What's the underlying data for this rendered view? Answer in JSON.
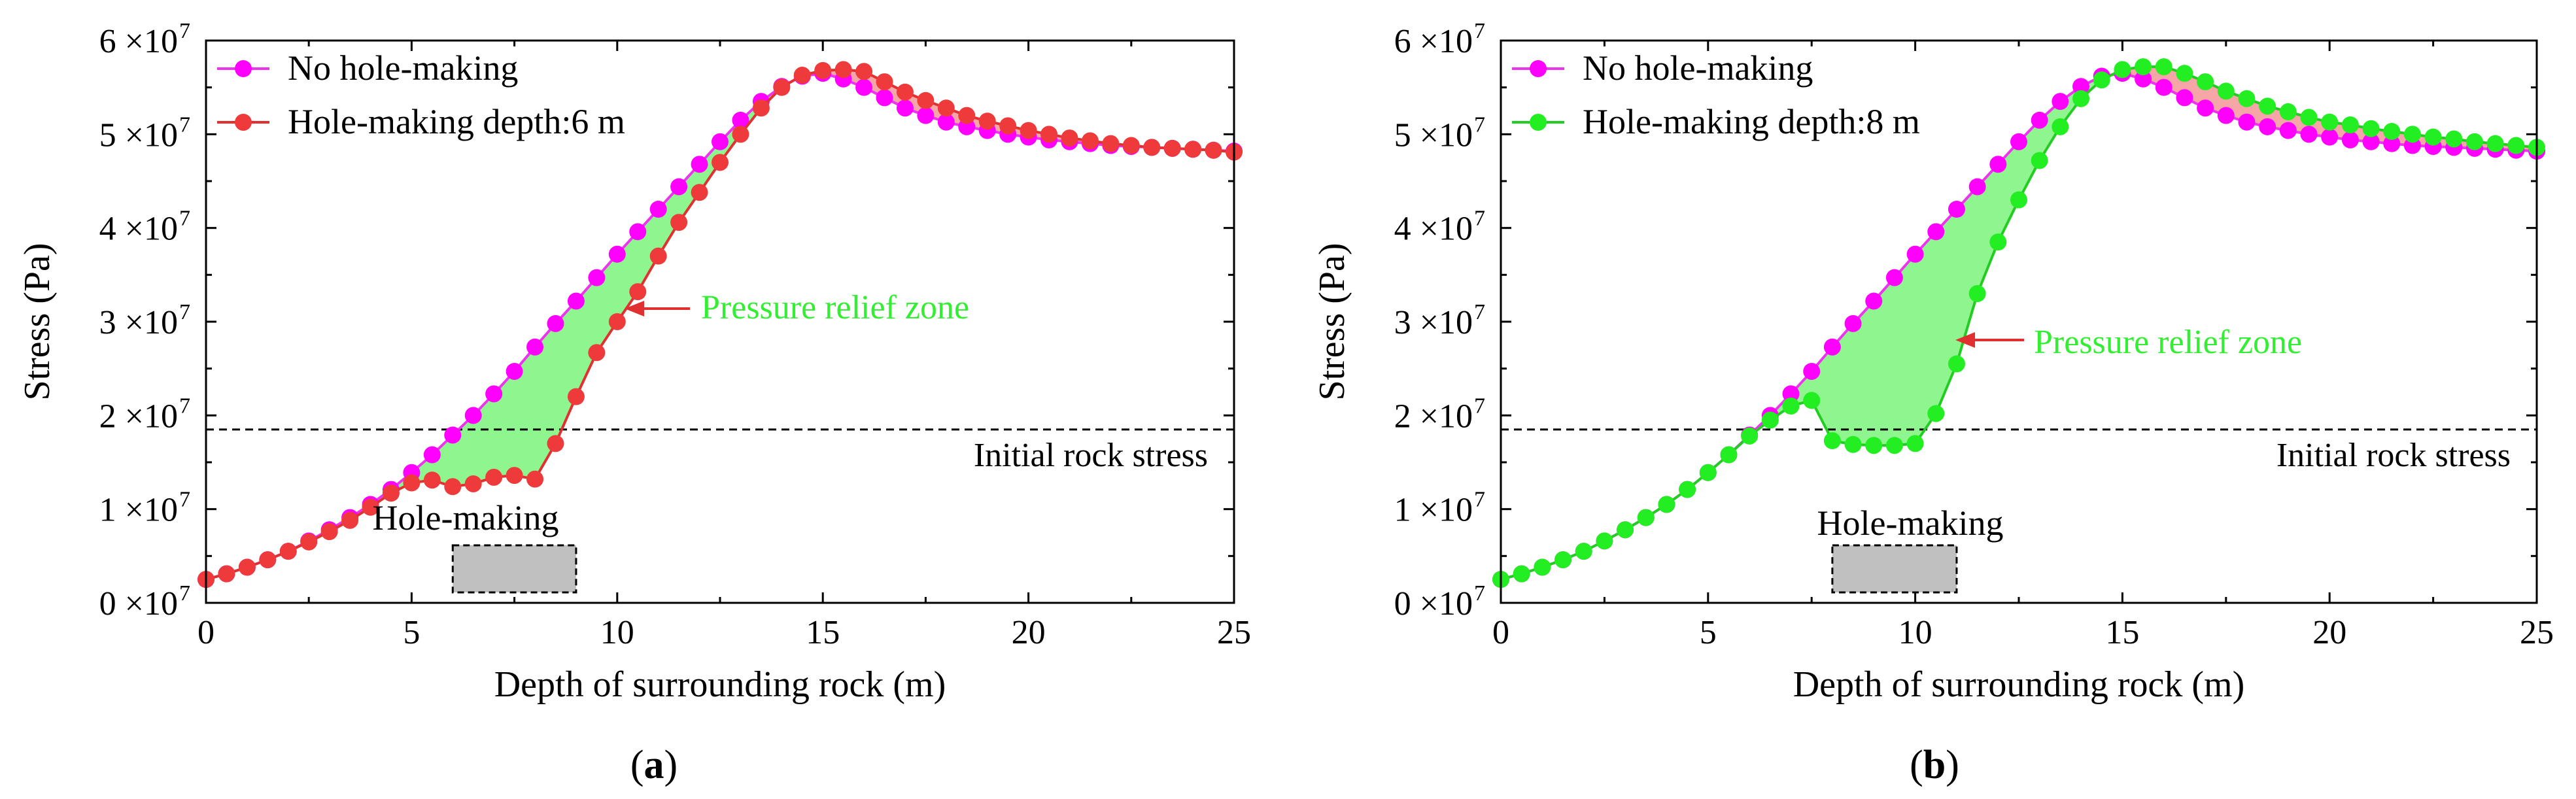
{
  "chart_data": [
    {
      "panel": "(a)",
      "panel_letter": "a",
      "type": "line",
      "xlabel": "Depth of surrounding rock (m)",
      "ylabel": "Stress (Pa)",
      "xlim": [
        0,
        25
      ],
      "ylim": [
        0,
        60000000
      ],
      "xticks": [
        0,
        5,
        10,
        15,
        20,
        25
      ],
      "yticks": [
        0,
        10000000,
        20000000,
        30000000,
        40000000,
        50000000,
        60000000
      ],
      "ytick_labels": [
        "0 ×10",
        "1 ×10",
        "2 ×10",
        "3 ×10",
        "4 ×10",
        "5 ×10",
        "6 ×10"
      ],
      "ytick_exponent": "7",
      "legend": "top-left",
      "series": [
        {
          "name": "No hole-making",
          "color": "#ff00ff",
          "line_color": "#ee33ee",
          "x": [
            0,
            0.5,
            1,
            1.5,
            2,
            2.5,
            3,
            3.5,
            4,
            4.5,
            5,
            5.5,
            6,
            6.5,
            7,
            7.5,
            8,
            8.5,
            9,
            9.5,
            10,
            10.5,
            11,
            11.5,
            12,
            12.5,
            13,
            13.5,
            14,
            14.5,
            15,
            15.5,
            16,
            16.5,
            17,
            17.5,
            18,
            18.5,
            19,
            19.5,
            20,
            20.5,
            21,
            21.5,
            22,
            22.5,
            23,
            23.5,
            24,
            24.5,
            25
          ],
          "values": [
            2500000,
            3100000,
            3800000,
            4600000,
            5500000,
            6600000,
            7800000,
            9100000,
            10500000,
            12100000,
            13900000,
            15800000,
            17900000,
            20000000,
            22300000,
            24700000,
            27300000,
            29800000,
            32200000,
            34700000,
            37200000,
            39600000,
            42000000,
            44400000,
            46800000,
            49200000,
            51500000,
            53500000,
            55100000,
            56200000,
            56500000,
            55900000,
            55000000,
            53900000,
            52800000,
            52000000,
            51300000,
            50800000,
            50400000,
            50000000,
            49700000,
            49400000,
            49200000,
            49000000,
            48800000,
            48700000,
            48600000,
            48500000,
            48400000,
            48300000,
            48200000
          ]
        },
        {
          "name": "Hole-making depth:6 m",
          "color": "#ee3a3a",
          "line_color": "#e03030",
          "x": [
            0,
            0.5,
            1,
            1.5,
            2,
            2.5,
            3,
            3.5,
            4,
            4.5,
            5,
            5.5,
            6,
            6.5,
            7,
            7.5,
            8,
            8.5,
            9,
            9.5,
            10,
            10.5,
            11,
            11.5,
            12,
            12.5,
            13,
            13.5,
            14,
            14.5,
            15,
            15.5,
            16,
            16.5,
            17,
            17.5,
            18,
            18.5,
            19,
            19.5,
            20,
            20.5,
            21,
            21.5,
            22,
            22.5,
            23,
            23.5,
            24,
            24.5,
            25
          ],
          "values": [
            2500000,
            3100000,
            3800000,
            4600000,
            5500000,
            6500000,
            7600000,
            8800000,
            10200000,
            11700000,
            12800000,
            13100000,
            12400000,
            12700000,
            13400000,
            13600000,
            13200000,
            17000000,
            22000000,
            26700000,
            30000000,
            33200000,
            37000000,
            40600000,
            43800000,
            47000000,
            50000000,
            52800000,
            55000000,
            56300000,
            56800000,
            56900000,
            56700000,
            55600000,
            54500000,
            53600000,
            52800000,
            52000000,
            51400000,
            50900000,
            50400000,
            50000000,
            49600000,
            49300000,
            49000000,
            48800000,
            48600000,
            48500000,
            48400000,
            48300000,
            48100000
          ]
        }
      ],
      "annotations": {
        "initial_stress": {
          "label": "Initial rock stress",
          "value": 18500000
        },
        "pressure_relief": {
          "label": "Pressure relief zone",
          "color": "#33ee33"
        },
        "hole_making": {
          "label": "Hole-making",
          "x_start": 6,
          "x_end": 9
        }
      }
    },
    {
      "panel": "(b)",
      "panel_letter": "b",
      "type": "line",
      "xlabel": "Depth of surrounding rock (m)",
      "ylabel": "Stress (Pa)",
      "xlim": [
        0,
        25
      ],
      "ylim": [
        0,
        60000000
      ],
      "xticks": [
        0,
        5,
        10,
        15,
        20,
        25
      ],
      "yticks": [
        0,
        10000000,
        20000000,
        30000000,
        40000000,
        50000000,
        60000000
      ],
      "ytick_labels": [
        "0 ×10",
        "1 ×10",
        "2 ×10",
        "3 ×10",
        "4 ×10",
        "5 ×10",
        "6 ×10"
      ],
      "ytick_exponent": "7",
      "legend": "top-left",
      "series": [
        {
          "name": "No hole-making",
          "color": "#ff00ff",
          "line_color": "#ee33ee",
          "x": [
            0,
            0.5,
            1,
            1.5,
            2,
            2.5,
            3,
            3.5,
            4,
            4.5,
            5,
            5.5,
            6,
            6.5,
            7,
            7.5,
            8,
            8.5,
            9,
            9.5,
            10,
            10.5,
            11,
            11.5,
            12,
            12.5,
            13,
            13.5,
            14,
            14.5,
            15,
            15.5,
            16,
            16.5,
            17,
            17.5,
            18,
            18.5,
            19,
            19.5,
            20,
            20.5,
            21,
            21.5,
            22,
            22.5,
            23,
            23.5,
            24,
            24.5,
            25
          ],
          "values": [
            2500000,
            3100000,
            3800000,
            4600000,
            5500000,
            6600000,
            7800000,
            9100000,
            10500000,
            12100000,
            13900000,
            15800000,
            17900000,
            20000000,
            22300000,
            24700000,
            27300000,
            29800000,
            32200000,
            34700000,
            37200000,
            39600000,
            42000000,
            44400000,
            46800000,
            49200000,
            51500000,
            53500000,
            55100000,
            56200000,
            56500000,
            55900000,
            55000000,
            53900000,
            52800000,
            52000000,
            51300000,
            50800000,
            50400000,
            50000000,
            49700000,
            49400000,
            49200000,
            49000000,
            48800000,
            48700000,
            48600000,
            48500000,
            48400000,
            48300000,
            48200000
          ]
        },
        {
          "name": "Hole-making depth:8 m",
          "color": "#22ee22",
          "line_color": "#22cc22",
          "x": [
            0,
            0.5,
            1,
            1.5,
            2,
            2.5,
            3,
            3.5,
            4,
            4.5,
            5,
            5.5,
            6,
            6.5,
            7,
            7.5,
            8,
            8.5,
            9,
            9.5,
            10,
            10.5,
            11,
            11.5,
            12,
            12.5,
            13,
            13.5,
            14,
            14.5,
            15,
            15.5,
            16,
            16.5,
            17,
            17.5,
            18,
            18.5,
            19,
            19.5,
            20,
            20.5,
            21,
            21.5,
            22,
            22.5,
            23,
            23.5,
            24,
            24.5,
            25
          ],
          "values": [
            2500000,
            3100000,
            3800000,
            4600000,
            5500000,
            6600000,
            7800000,
            9100000,
            10500000,
            12100000,
            13900000,
            15800000,
            17800000,
            19500000,
            21000000,
            21600000,
            17300000,
            16900000,
            16800000,
            16800000,
            17000000,
            20200000,
            25500000,
            33000000,
            38500000,
            43000000,
            47200000,
            50800000,
            53800000,
            55800000,
            56900000,
            57200000,
            57200000,
            56500000,
            55600000,
            54600000,
            53800000,
            53000000,
            52400000,
            51800000,
            51300000,
            51000000,
            50600000,
            50300000,
            50000000,
            49700000,
            49500000,
            49200000,
            49000000,
            48800000,
            48600000
          ]
        }
      ],
      "annotations": {
        "initial_stress": {
          "label": "Initial rock stress",
          "value": 18500000
        },
        "pressure_relief": {
          "label": "Pressure relief zone",
          "color": "#33ee33"
        },
        "hole_making": {
          "label": "Hole-making",
          "x_start": 8,
          "x_end": 11
        }
      }
    }
  ]
}
